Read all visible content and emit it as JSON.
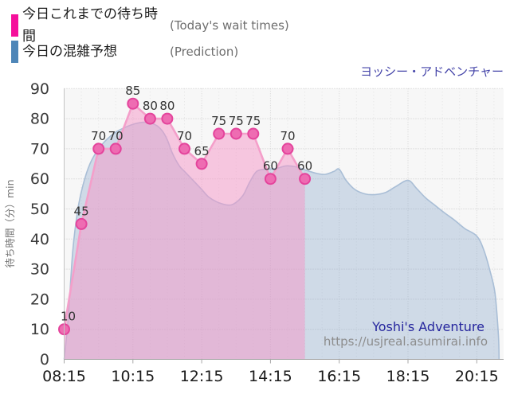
{
  "legend": {
    "actual": {
      "label_jp": "今日これまでの待ち時間",
      "label_en": "(Today's wait times)",
      "color": "#f5109b"
    },
    "prediction": {
      "label_jp": "今日の混雑予想",
      "label_en": "(Prediction)",
      "color": "#4e86b8"
    }
  },
  "attraction": {
    "title_jp": "ヨッシー・アドベンチャー",
    "title_en": "Yoshi's Adventure",
    "source_url": "https://usjreal.asumirai.info"
  },
  "chart_data": {
    "type": "area",
    "title": "ヨッシー・アドベンチャー (Yoshi's Adventure) wait times",
    "ylabel": "待ち時間（分）min",
    "ylim": [
      0,
      90
    ],
    "yticks": [
      0,
      10,
      20,
      30,
      40,
      50,
      60,
      70,
      80,
      90
    ],
    "xlim_hours": [
      8.25,
      21.03
    ],
    "x_minor_step_hours": 0.5,
    "grid": true,
    "legend_position": "top-left",
    "xticks": [
      {
        "label": "08:15",
        "hour": 8.25
      },
      {
        "label": "10:15",
        "hour": 10.25
      },
      {
        "label": "12:15",
        "hour": 12.25
      },
      {
        "label": "14:15",
        "hour": 14.25
      },
      {
        "label": "16:15",
        "hour": 16.25
      },
      {
        "label": "18:15",
        "hour": 18.25
      },
      {
        "label": "20:15",
        "hour": 20.25
      }
    ],
    "series": [
      {
        "name": "今日これまでの待ち時間 (Today's wait times)",
        "style": "straight-line-markers-area",
        "color_line": "#f49fca",
        "color_marker": "#ee6cb2",
        "color_marker_stroke": "#e4449c",
        "color_fill": "rgba(246,150,200,0.50)",
        "marker_radius": 6.5,
        "show_point_labels": true,
        "times": [
          "08:15",
          "08:45",
          "09:15",
          "09:45",
          "10:15",
          "10:45",
          "11:15",
          "11:45",
          "12:15",
          "12:45",
          "13:15",
          "13:45",
          "14:15",
          "14:45",
          "15:15"
        ],
        "hours": [
          8.25,
          8.75,
          9.25,
          9.75,
          10.25,
          10.75,
          11.25,
          11.75,
          12.25,
          12.75,
          13.25,
          13.75,
          14.25,
          14.75,
          15.25
        ],
        "values": [
          10,
          45,
          70,
          70,
          85,
          80,
          80,
          70,
          65,
          75,
          75,
          75,
          60,
          70,
          60
        ]
      },
      {
        "name": "今日の混雑予想 (Prediction)",
        "style": "smooth-area",
        "color_line": "#a9bed6",
        "color_fill": "rgba(125,160,198,0.32)",
        "points": [
          [
            8.25,
            0
          ],
          [
            8.37,
            14
          ],
          [
            8.5,
            36
          ],
          [
            8.65,
            50
          ],
          [
            8.8,
            58
          ],
          [
            9.0,
            65
          ],
          [
            9.25,
            70
          ],
          [
            9.5,
            73.2
          ],
          [
            9.75,
            75.5
          ],
          [
            10.0,
            77
          ],
          [
            10.3,
            78.3
          ],
          [
            10.6,
            78.8
          ],
          [
            10.9,
            78
          ],
          [
            11.1,
            76
          ],
          [
            11.25,
            73
          ],
          [
            11.4,
            68.5
          ],
          [
            11.6,
            64.3
          ],
          [
            11.75,
            62.5
          ],
          [
            12.0,
            59.5
          ],
          [
            12.25,
            56.5
          ],
          [
            12.45,
            54
          ],
          [
            12.7,
            52.3
          ],
          [
            13.0,
            51.3
          ],
          [
            13.2,
            51.8
          ],
          [
            13.45,
            54.5
          ],
          [
            13.65,
            59
          ],
          [
            13.85,
            62.5
          ],
          [
            14.1,
            63.2
          ],
          [
            14.4,
            63.4
          ],
          [
            14.7,
            64.3
          ],
          [
            15.0,
            64
          ],
          [
            15.3,
            62.8
          ],
          [
            15.6,
            61.8
          ],
          [
            15.85,
            61.5
          ],
          [
            16.1,
            62.5
          ],
          [
            16.25,
            63.2
          ],
          [
            16.45,
            59.5
          ],
          [
            16.7,
            56.5
          ],
          [
            17.0,
            55
          ],
          [
            17.3,
            54.8
          ],
          [
            17.6,
            55.5
          ],
          [
            17.9,
            57.5
          ],
          [
            18.25,
            59.5
          ],
          [
            18.5,
            56.8
          ],
          [
            18.75,
            53.8
          ],
          [
            19.0,
            51.5
          ],
          [
            19.3,
            48.8
          ],
          [
            19.6,
            46.3
          ],
          [
            19.9,
            43.5
          ],
          [
            20.25,
            41
          ],
          [
            20.45,
            36.5
          ],
          [
            20.62,
            30
          ],
          [
            20.78,
            22
          ],
          [
            20.88,
            8
          ],
          [
            20.9,
            0
          ]
        ]
      }
    ]
  }
}
